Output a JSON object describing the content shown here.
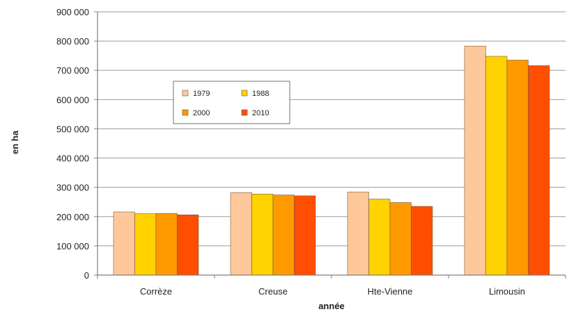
{
  "chart_data": {
    "type": "bar",
    "categories": [
      "Corrèze",
      "Creuse",
      "Hte-Vienne",
      "Limousin"
    ],
    "series": [
      {
        "name": "1979",
        "color": "#FFC89A",
        "values": [
          216000,
          282000,
          284000,
          783000
        ]
      },
      {
        "name": "1988",
        "color": "#FFD200",
        "values": [
          210000,
          277000,
          260000,
          748000
        ]
      },
      {
        "name": "2000",
        "color": "#FF9900",
        "values": [
          211000,
          274000,
          248000,
          735000
        ]
      },
      {
        "name": "2010",
        "color": "#FF4E00",
        "values": [
          206000,
          271000,
          235000,
          716000
        ]
      }
    ],
    "xlabel": "année",
    "ylabel": "en ha",
    "ylim": [
      0,
      900000
    ],
    "yticks": [
      0,
      100000,
      200000,
      300000,
      400000,
      500000,
      600000,
      700000,
      800000,
      900000
    ],
    "ytick_labels": [
      "0",
      "100 000",
      "200 000",
      "300 000",
      "400 000",
      "500 000",
      "600 000",
      "700 000",
      "800 000",
      "900 000"
    ],
    "grid": true,
    "legend": "upper-left inside plot, 2 columns"
  }
}
